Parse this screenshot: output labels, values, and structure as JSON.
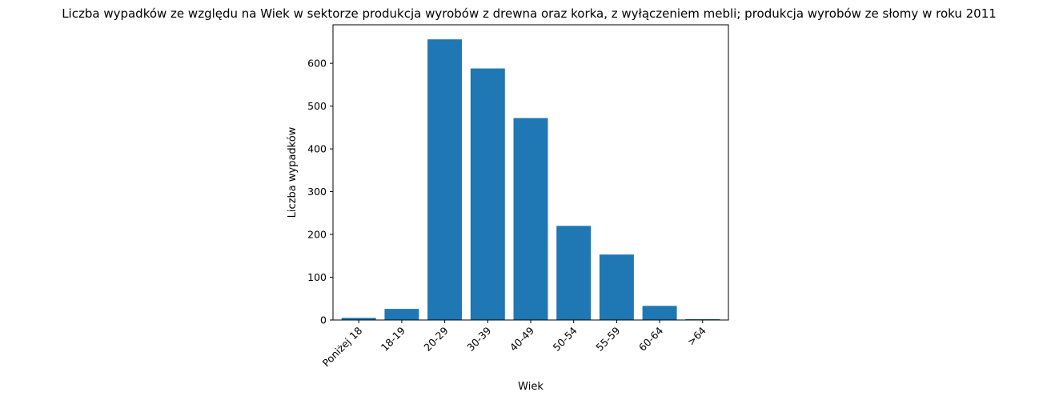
{
  "chart_data": {
    "type": "bar",
    "title": "Liczba wypadków ze względu na Wiek w sektorze produkcja wyrobów z drewna oraz korka, z wyłączeniem mebli; produkcja wyrobów ze słomy w roku 2011",
    "xlabel": "Wiek",
    "ylabel": "Liczba wypadków",
    "categories": [
      "Poniżej 18",
      "18-19",
      "20-29",
      "30-39",
      "40-49",
      "50-54",
      "55-59",
      "60-64",
      ">64"
    ],
    "values": [
      5,
      26,
      656,
      588,
      472,
      220,
      153,
      33,
      2
    ],
    "ylim": [
      0,
      690
    ],
    "yticks": [
      0,
      100,
      200,
      300,
      400,
      500,
      600
    ],
    "bar_color": "#1f77b4",
    "grid": false,
    "xtick_rotation": 45
  }
}
